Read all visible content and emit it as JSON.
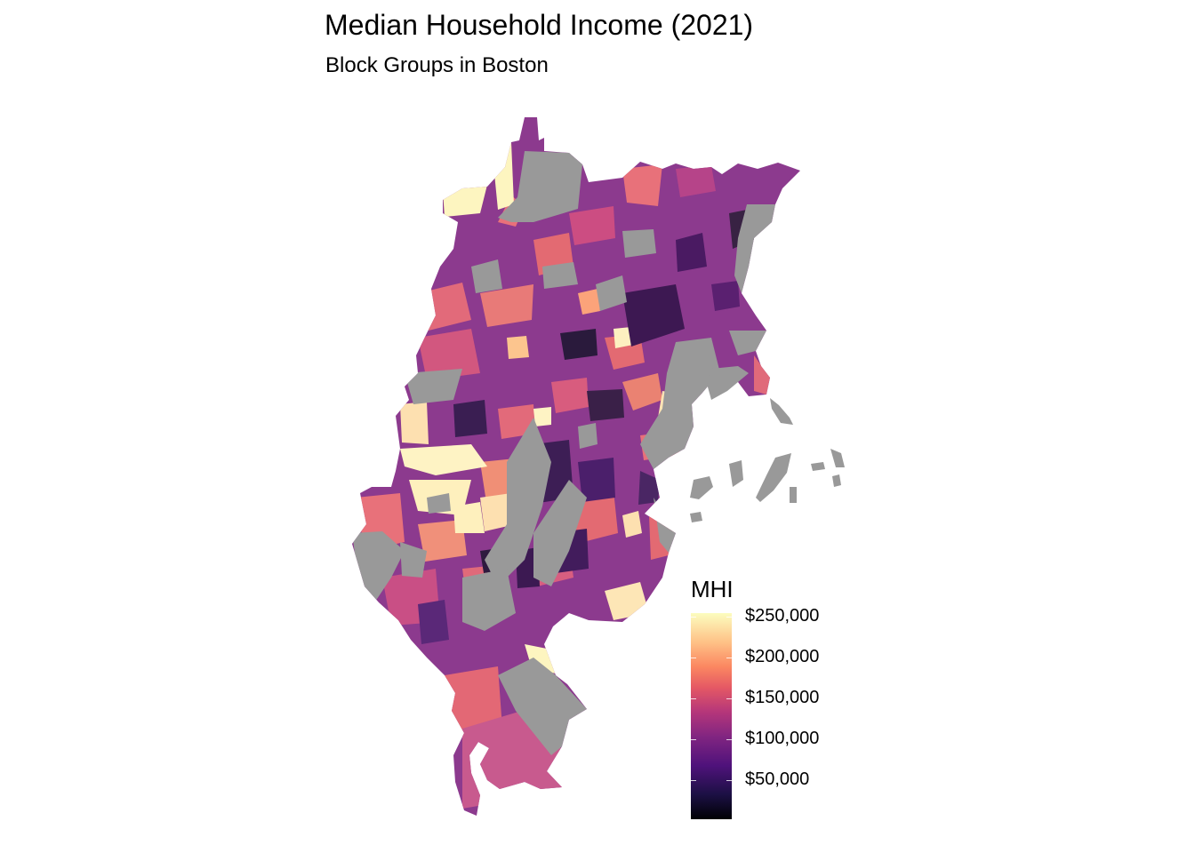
{
  "title": "Median Household Income (2021)",
  "subtitle": "Block Groups in Boston",
  "legend": {
    "title": "MHI",
    "ticks": [
      "$250,000",
      "$200,000",
      "$150,000",
      "$100,000",
      "$50,000"
    ]
  },
  "colors": {
    "no_data": "#999999",
    "scale": [
      "#000004",
      "#1c1044",
      "#4f127b",
      "#812581",
      "#b5367a",
      "#e55964",
      "#fb8761",
      "#fec287",
      "#fcfdbf"
    ]
  }
}
